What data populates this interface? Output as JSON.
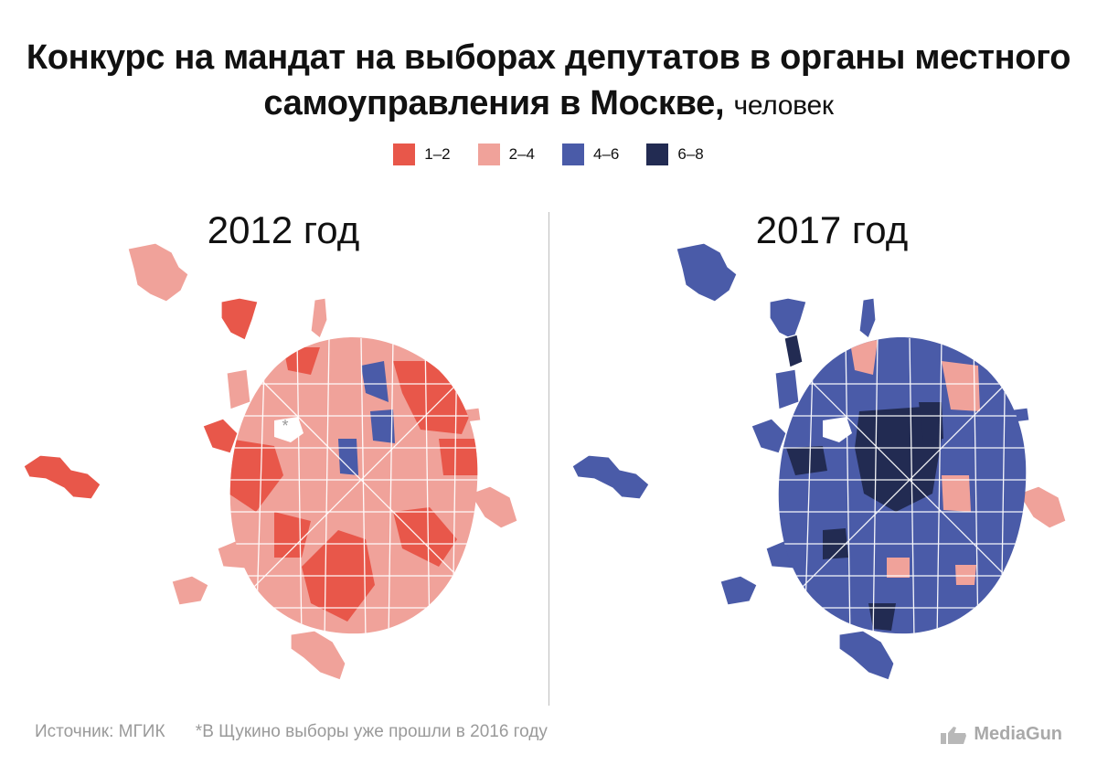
{
  "title": {
    "main": "Конкурс на мандат на выборах депутатов в органы местного самоуправления в Москве,",
    "unit": "человек"
  },
  "legend": [
    {
      "label": "1–2",
      "color": "#e8574a"
    },
    {
      "label": "2–4",
      "color": "#f0a29a"
    },
    {
      "label": "4–6",
      "color": "#4a5ba8"
    },
    {
      "label": "6–8",
      "color": "#222b52"
    }
  ],
  "maps": [
    {
      "year_label": "2012 год",
      "dominant_category": "2–4"
    },
    {
      "year_label": "2017 год",
      "dominant_category": "4–6"
    }
  ],
  "note_marker": "*",
  "footer": {
    "source": "Источник: МГИК",
    "note": "*В Щукино выборы уже прошли в 2016 году"
  },
  "brand": {
    "name": "MediaGun",
    "icon": "thumbs-up-icon"
  }
}
